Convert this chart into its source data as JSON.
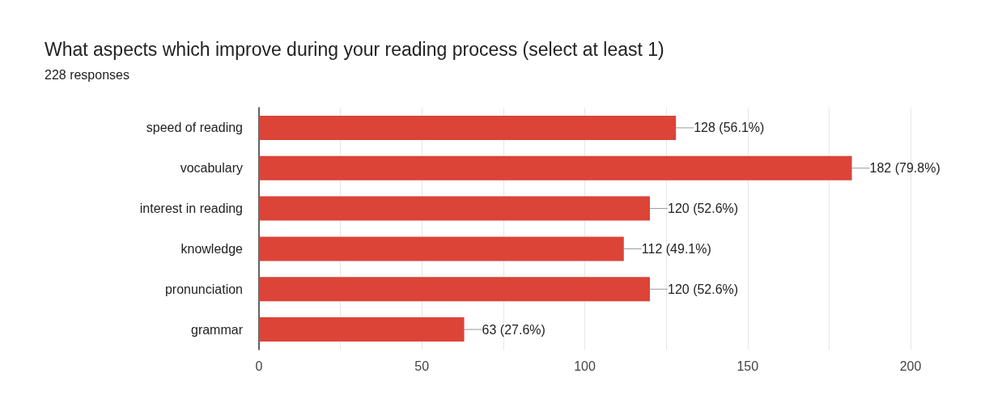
{
  "chart_data": {
    "type": "bar",
    "orientation": "horizontal",
    "title": "What aspects which improve during your reading process (select at least 1)",
    "subtitle": "228 responses",
    "categories": [
      "speed of reading",
      "vocabulary",
      "interest in reading",
      "knowledge",
      "pronunciation",
      "grammar"
    ],
    "values": [
      128,
      182,
      120,
      112,
      120,
      63
    ],
    "value_labels": [
      "128 (56.1%)",
      "182 (79.8%)",
      "120 (52.6%)",
      "112 (49.1%)",
      "120 (52.6%)",
      "63 (27.6%)"
    ],
    "color": "#db4437",
    "xlim": [
      0,
      200
    ],
    "xticks": [
      0,
      {
        "value": 25,
        "label": null
      },
      50,
      {
        "value": 75,
        "label": null
      },
      100,
      {
        "value": 125,
        "label": null
      },
      150,
      {
        "value": 175,
        "label": null
      },
      200
    ],
    "grid": "x"
  }
}
